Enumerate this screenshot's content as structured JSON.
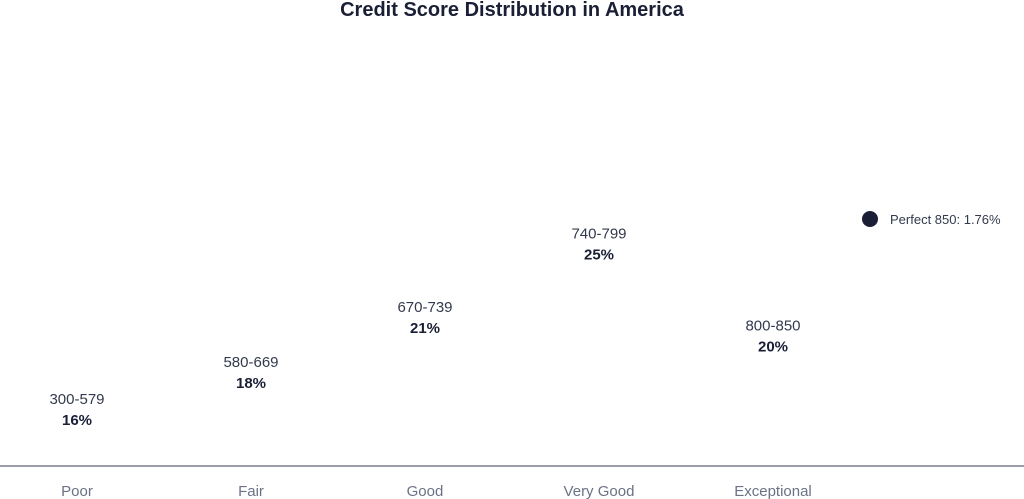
{
  "chart_data": {
    "type": "scatter",
    "title": "Credit Score Distribution in America",
    "categories": [
      "Poor",
      "Fair",
      "Good",
      "Very Good",
      "Exceptional"
    ],
    "ranges": [
      "300-579",
      "580-669",
      "670-739",
      "740-799",
      "800-850"
    ],
    "values": [
      16,
      18,
      21,
      25,
      20
    ],
    "value_labels": [
      "16%",
      "18%",
      "21%",
      "25%",
      "20%"
    ],
    "annotation": {
      "text": "Perfect 850: 1.76%",
      "value": 1.76
    },
    "colors": {
      "text": "#1a1f36",
      "muted": "#6b7285",
      "axis": "#7a7f8c",
      "marker": "#1a1f36"
    }
  }
}
